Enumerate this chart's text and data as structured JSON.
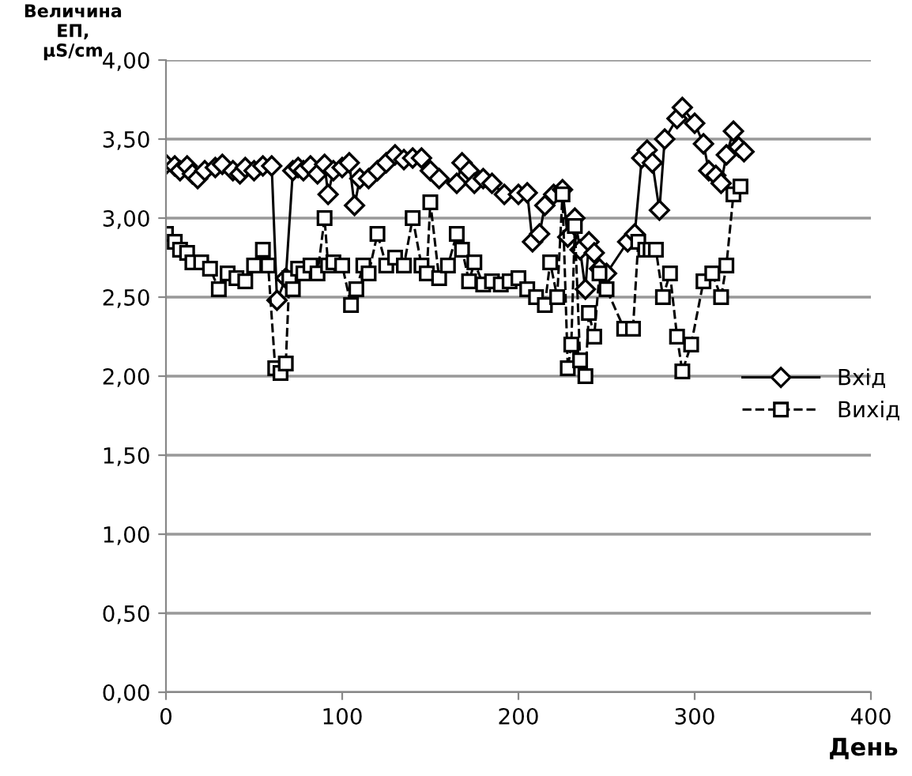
{
  "chart_data": {
    "type": "line",
    "ylabel": "Величина\nЕП,\nμS/cm",
    "xlabel": "День",
    "xlim": [
      0,
      400
    ],
    "xticks": [
      0,
      100,
      200,
      300,
      400
    ],
    "ylim": [
      0,
      4
    ],
    "yticks": [
      {
        "value": 0,
        "label": "0,00"
      },
      {
        "value": 0.5,
        "label": "0,50"
      },
      {
        "value": 1,
        "label": "1,00"
      },
      {
        "value": 1.5,
        "label": "1,50"
      },
      {
        "value": 2,
        "label": "2,00"
      },
      {
        "value": 2.5,
        "label": "2,50"
      },
      {
        "value": 3,
        "label": "3,00"
      },
      {
        "value": 3.5,
        "label": "3,50"
      },
      {
        "value": 4,
        "label": "4,00"
      }
    ],
    "grid": "y",
    "legend": "right",
    "series": [
      {
        "name": "Вхід",
        "color": "#000000",
        "marker": "diamond",
        "line_style": "solid",
        "x": [
          0,
          5,
          8,
          12,
          15,
          18,
          22,
          28,
          32,
          38,
          42,
          45,
          50,
          55,
          60,
          63,
          68,
          72,
          75,
          78,
          82,
          86,
          90,
          92,
          95,
          100,
          104,
          107,
          110,
          115,
          120,
          125,
          130,
          135,
          140,
          145,
          150,
          155,
          165,
          168,
          172,
          175,
          180,
          185,
          192,
          200,
          205,
          208,
          212,
          215,
          220,
          225,
          228,
          232,
          235,
          238,
          240,
          243,
          246,
          250,
          262,
          266,
          270,
          273,
          276,
          280,
          283,
          290,
          293,
          300,
          305,
          308,
          312,
          315,
          318,
          322,
          325,
          328
        ],
        "values": [
          3.34,
          3.33,
          3.3,
          3.33,
          3.28,
          3.25,
          3.3,
          3.32,
          3.34,
          3.3,
          3.28,
          3.32,
          3.3,
          3.33,
          3.33,
          2.48,
          2.62,
          3.3,
          3.32,
          3.3,
          3.33,
          3.28,
          3.34,
          3.15,
          3.3,
          3.32,
          3.35,
          3.08,
          3.25,
          3.25,
          3.3,
          3.35,
          3.4,
          3.37,
          3.38,
          3.38,
          3.3,
          3.25,
          3.22,
          3.35,
          3.3,
          3.22,
          3.25,
          3.22,
          3.15,
          3.15,
          3.16,
          2.85,
          2.9,
          3.08,
          3.15,
          3.18,
          2.88,
          3.0,
          2.8,
          2.55,
          2.85,
          2.78,
          2.68,
          2.65,
          2.85,
          2.9,
          3.38,
          3.43,
          3.35,
          3.05,
          3.5,
          3.63,
          3.7,
          3.6,
          3.47,
          3.3,
          3.27,
          3.22,
          3.4,
          3.55,
          3.45,
          3.42
        ]
      },
      {
        "name": "Вихід",
        "color": "#000000",
        "marker": "square",
        "line_style": "dashed",
        "x": [
          0,
          5,
          8,
          12,
          15,
          20,
          25,
          30,
          35,
          40,
          45,
          50,
          55,
          58,
          62,
          65,
          68,
          70,
          72,
          75,
          78,
          82,
          86,
          90,
          92,
          95,
          100,
          105,
          108,
          112,
          115,
          120,
          125,
          130,
          135,
          140,
          145,
          148,
          150,
          155,
          160,
          165,
          168,
          172,
          175,
          180,
          185,
          190,
          195,
          200,
          205,
          210,
          215,
          218,
          222,
          225,
          228,
          230,
          232,
          235,
          238,
          240,
          243,
          246,
          250,
          260,
          265,
          268,
          272,
          275,
          278,
          282,
          286,
          290,
          293,
          298,
          305,
          310,
          315,
          318,
          322,
          326
        ],
        "values": [
          2.9,
          2.85,
          2.8,
          2.78,
          2.72,
          2.72,
          2.68,
          2.55,
          2.65,
          2.62,
          2.6,
          2.7,
          2.8,
          2.7,
          2.05,
          2.02,
          2.08,
          2.62,
          2.55,
          2.68,
          2.65,
          2.7,
          2.65,
          3.0,
          2.7,
          2.72,
          2.7,
          2.45,
          2.55,
          2.7,
          2.65,
          2.9,
          2.7,
          2.75,
          2.7,
          3.0,
          2.7,
          2.65,
          3.1,
          2.62,
          2.7,
          2.9,
          2.8,
          2.6,
          2.72,
          2.58,
          2.6,
          2.58,
          2.6,
          2.62,
          2.55,
          2.5,
          2.45,
          2.72,
          2.5,
          3.15,
          2.05,
          2.2,
          2.95,
          2.1,
          2.0,
          2.4,
          2.25,
          2.65,
          2.55,
          2.3,
          2.3,
          2.85,
          2.8,
          2.8,
          2.8,
          2.5,
          2.65,
          2.25,
          2.03,
          2.2,
          2.6,
          2.65,
          2.5,
          2.7,
          3.15,
          3.2
        ]
      }
    ]
  }
}
